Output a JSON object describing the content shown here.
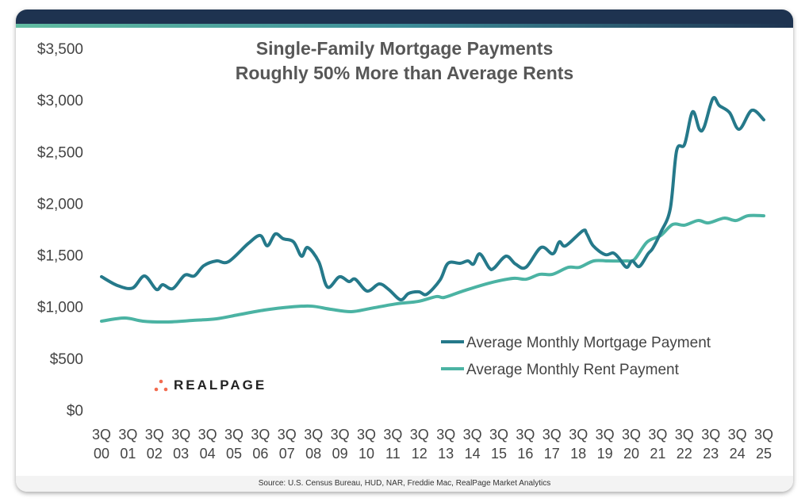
{
  "chart_data": {
    "type": "line",
    "title": "Single-Family Mortgage Payments\nRoughly 50% More than Average Rents",
    "title_lines": [
      "Single-Family Mortgage Payments",
      "Roughly 50% More than Average Rents"
    ],
    "xlabel": "",
    "ylabel": "",
    "ylim": [
      0,
      3500
    ],
    "xlim": [
      2000.75,
      2025.75
    ],
    "y_ticks": [
      "$0",
      "$500",
      "$1,000",
      "$1,500",
      "$2,000",
      "$2,500",
      "$3,000",
      "$3,500"
    ],
    "y_tick_values": [
      0,
      500,
      1000,
      1500,
      2000,
      2500,
      3000,
      3500
    ],
    "x_ticks": [
      [
        "3Q",
        "00"
      ],
      [
        "3Q",
        "01"
      ],
      [
        "3Q",
        "02"
      ],
      [
        "3Q",
        "03"
      ],
      [
        "3Q",
        "04"
      ],
      [
        "3Q",
        "05"
      ],
      [
        "3Q",
        "06"
      ],
      [
        "3Q",
        "07"
      ],
      [
        "3Q",
        "08"
      ],
      [
        "3Q",
        "09"
      ],
      [
        "3Q",
        "10"
      ],
      [
        "3Q",
        "11"
      ],
      [
        "3Q",
        "12"
      ],
      [
        "3Q",
        "13"
      ],
      [
        "3Q",
        "14"
      ],
      [
        "3Q",
        "15"
      ],
      [
        "3Q",
        "16"
      ],
      [
        "3Q",
        "17"
      ],
      [
        "3Q",
        "18"
      ],
      [
        "3Q",
        "19"
      ],
      [
        "3Q",
        "20"
      ],
      [
        "3Q",
        "21"
      ],
      [
        "3Q",
        "22"
      ],
      [
        "3Q",
        "23"
      ],
      [
        "3Q",
        "24"
      ],
      [
        "3Q",
        "25"
      ]
    ],
    "grid": false,
    "legend_position": "bottom-right",
    "series": [
      {
        "name": "Average Monthly Mortgage Payment",
        "color": "#25798a",
        "x": [
          2000.75,
          2001.35,
          2001.92,
          2002.37,
          2002.82,
          2003.06,
          2003.44,
          2003.89,
          2004.25,
          2004.61,
          2005.09,
          2005.54,
          2006.29,
          2006.74,
          2007.01,
          2007.31,
          2007.61,
          2008.0,
          2008.3,
          2008.53,
          2008.95,
          2009.28,
          2009.73,
          2010.09,
          2010.33,
          2010.78,
          2011.23,
          2011.59,
          2012.04,
          2012.34,
          2012.73,
          2013.03,
          2013.53,
          2013.83,
          2014.28,
          2014.58,
          2014.79,
          2015.03,
          2015.39,
          2015.57,
          2016.02,
          2016.38,
          2016.77,
          2017.34,
          2017.79,
          2018.03,
          2018.27,
          2018.92,
          2019.07,
          2019.31,
          2019.76,
          2020.06,
          2020.27,
          2020.57,
          2020.78,
          2021.05,
          2021.38,
          2021.56,
          2021.86,
          2022.22,
          2022.46,
          2022.76,
          2023.06,
          2023.32,
          2023.5,
          2023.83,
          2024.07,
          2024.46,
          2024.82,
          2025.3,
          2025.75
        ],
        "values": [
          1290,
          1205,
          1180,
          1297,
          1167,
          1213,
          1175,
          1305,
          1297,
          1397,
          1443,
          1435,
          1612,
          1689,
          1589,
          1704,
          1658,
          1627,
          1489,
          1573,
          1435,
          1190,
          1289,
          1243,
          1266,
          1151,
          1220,
          1167,
          1067,
          1128,
          1144,
          1121,
          1259,
          1420,
          1420,
          1443,
          1412,
          1512,
          1374,
          1374,
          1489,
          1412,
          1381,
          1573,
          1512,
          1627,
          1589,
          1735,
          1704,
          1589,
          1504,
          1520,
          1474,
          1381,
          1443,
          1389,
          1512,
          1566,
          1719,
          1949,
          2510,
          2571,
          2886,
          2717,
          2740,
          3016,
          2947,
          2878,
          2717,
          2901,
          2809
        ]
      },
      {
        "name": "Average Monthly Rent Payment",
        "color": "#4bb3a3",
        "x": [
          2000.75,
          2001.62,
          2002.31,
          2003.21,
          2004.19,
          2005.09,
          2005.9,
          2006.89,
          2007.91,
          2008.68,
          2009.4,
          2010.18,
          2010.9,
          2011.89,
          2012.7,
          2013.39,
          2013.69,
          2014.39,
          2015.38,
          2016.28,
          2016.78,
          2017.29,
          2017.77,
          2018.37,
          2018.79,
          2019.33,
          2019.87,
          2020.57,
          2020.87,
          2021.35,
          2021.86,
          2022.31,
          2022.76,
          2023.27,
          2023.66,
          2024.25,
          2024.7,
          2025.15,
          2025.75
        ],
        "values": [
          860,
          890,
          860,
          852,
          867,
          883,
          921,
          967,
          998,
          1005,
          975,
          952,
          983,
          1028,
          1051,
          1098,
          1090,
          1151,
          1228,
          1274,
          1266,
          1313,
          1313,
          1381,
          1381,
          1443,
          1443,
          1443,
          1458,
          1627,
          1689,
          1796,
          1789,
          1834,
          1811,
          1857,
          1834,
          1880,
          1880
        ]
      }
    ]
  },
  "logo": {
    "text": "REALPAGE",
    "dot_color": "#f26b4f"
  },
  "source": "Source: U.S. Census Bureau, HUD, NAR, Freddie Mac, RealPage Market Analytics"
}
